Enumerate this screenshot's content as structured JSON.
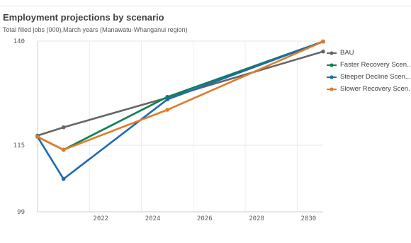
{
  "chart_data": {
    "type": "line",
    "title": "Employment projections by scenario",
    "subtitle": "Total filled jobs (000),March years (Manawatu-Whanganui region)",
    "xlabel": "",
    "ylabel": "",
    "x": [
      2020,
      2021,
      2025,
      2031
    ],
    "xlim": [
      2020,
      2031
    ],
    "ylim": [
      99,
      140
    ],
    "x_ticks": [
      "2022",
      "2024",
      "2026",
      "2028",
      "2030"
    ],
    "y_ticks": [
      "99",
      "115",
      "140"
    ],
    "grid": true,
    "legend_position": "right",
    "series": [
      {
        "name": "BAU",
        "color": "#666666",
        "values": [
          117.3,
          119.3,
          126.4,
          137.5
        ]
      },
      {
        "name": "Faster Recovery Scen...",
        "color": "#108052",
        "values": [
          117.0,
          113.9,
          126.6,
          139.9
        ]
      },
      {
        "name": "Steeper Decline Scen...",
        "color": "#1f6ab2",
        "values": [
          117.0,
          106.9,
          126.0,
          139.9
        ]
      },
      {
        "name": "Slower Recovery Scen...",
        "color": "#e07b29",
        "values": [
          117.0,
          113.9,
          123.5,
          139.9
        ]
      }
    ]
  }
}
